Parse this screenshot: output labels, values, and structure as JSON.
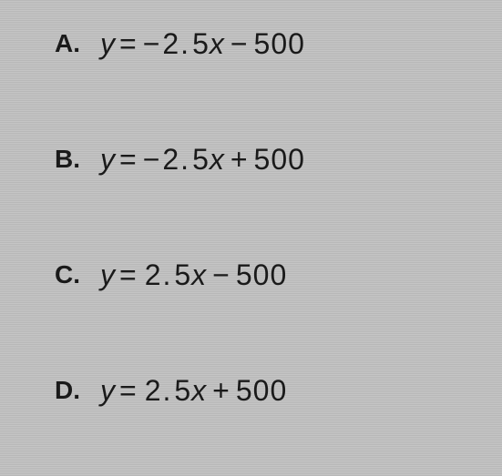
{
  "options": [
    {
      "letter": "A.",
      "y": "y",
      "eq": "=",
      "coef_sign": "−",
      "coef_int": "2",
      "coef_dot": ".",
      "coef_dec": "5",
      "x": "x",
      "op": "−",
      "const": "500"
    },
    {
      "letter": "B.",
      "y": "y",
      "eq": "=",
      "coef_sign": "−",
      "coef_int": "2",
      "coef_dot": ".",
      "coef_dec": "5",
      "x": "x",
      "op": "+",
      "const": "500"
    },
    {
      "letter": "C.",
      "y": "y",
      "eq": "=",
      "coef_sign": "",
      "coef_int": "2",
      "coef_dot": ".",
      "coef_dec": "5",
      "x": "x",
      "op": "−",
      "const": "500"
    },
    {
      "letter": "D.",
      "y": "y",
      "eq": "=",
      "coef_sign": "",
      "coef_int": "2",
      "coef_dot": ".",
      "coef_dec": "5",
      "x": "x",
      "op": "+",
      "const": "500"
    }
  ],
  "styling": {
    "background_stripe_light": "#c5c5c5",
    "background_stripe_dark": "#b8b8b8",
    "text_color": "#1a1a1a",
    "letter_fontsize": 28,
    "equation_fontsize": 32,
    "option_spacing": 90,
    "letter_weight": "bold"
  }
}
